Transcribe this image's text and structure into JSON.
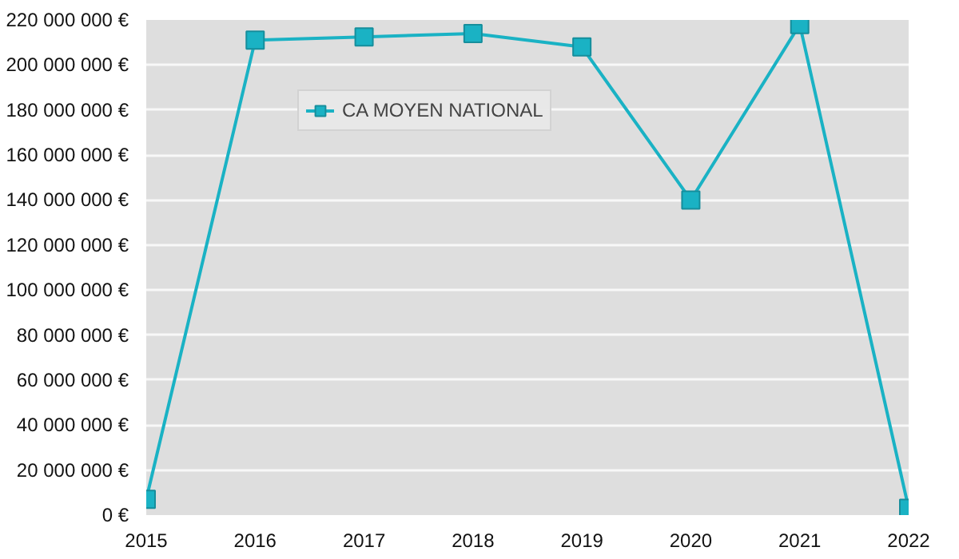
{
  "chart_data": {
    "type": "line",
    "x": [
      2015,
      2016,
      2017,
      2018,
      2019,
      2020,
      2021,
      2022
    ],
    "series": [
      {
        "name": "CA MOYEN NATIONAL",
        "color": "#1ab2c4",
        "values": [
          7000000,
          211000000,
          212500000,
          214000000,
          208000000,
          140000000,
          218000000,
          3000000
        ]
      }
    ],
    "xlim": [
      2015,
      2022
    ],
    "xticks": [
      2015,
      2016,
      2017,
      2018,
      2019,
      2020,
      2021,
      2022
    ],
    "ylim": [
      0,
      220000000
    ],
    "yticks": [
      {
        "value": 0,
        "label": "0 €"
      },
      {
        "value": 20000000,
        "label": "20 000 000 €"
      },
      {
        "value": 40000000,
        "label": "40 000 000 €"
      },
      {
        "value": 60000000,
        "label": "60 000 000 €"
      },
      {
        "value": 80000000,
        "label": "80 000 000 €"
      },
      {
        "value": 100000000,
        "label": "100 000 000 €"
      },
      {
        "value": 120000000,
        "label": "120 000 000 €"
      },
      {
        "value": 140000000,
        "label": "140 000 000 €"
      },
      {
        "value": 160000000,
        "label": "160 000 000 €"
      },
      {
        "value": 180000000,
        "label": "180 000 000 €"
      },
      {
        "value": 200000000,
        "label": "200 000 000 €"
      },
      {
        "value": 220000000,
        "label": "220 000 000 €"
      }
    ],
    "grid": "y",
    "legend": "top left",
    "marker": "square",
    "line_style": "solid"
  }
}
